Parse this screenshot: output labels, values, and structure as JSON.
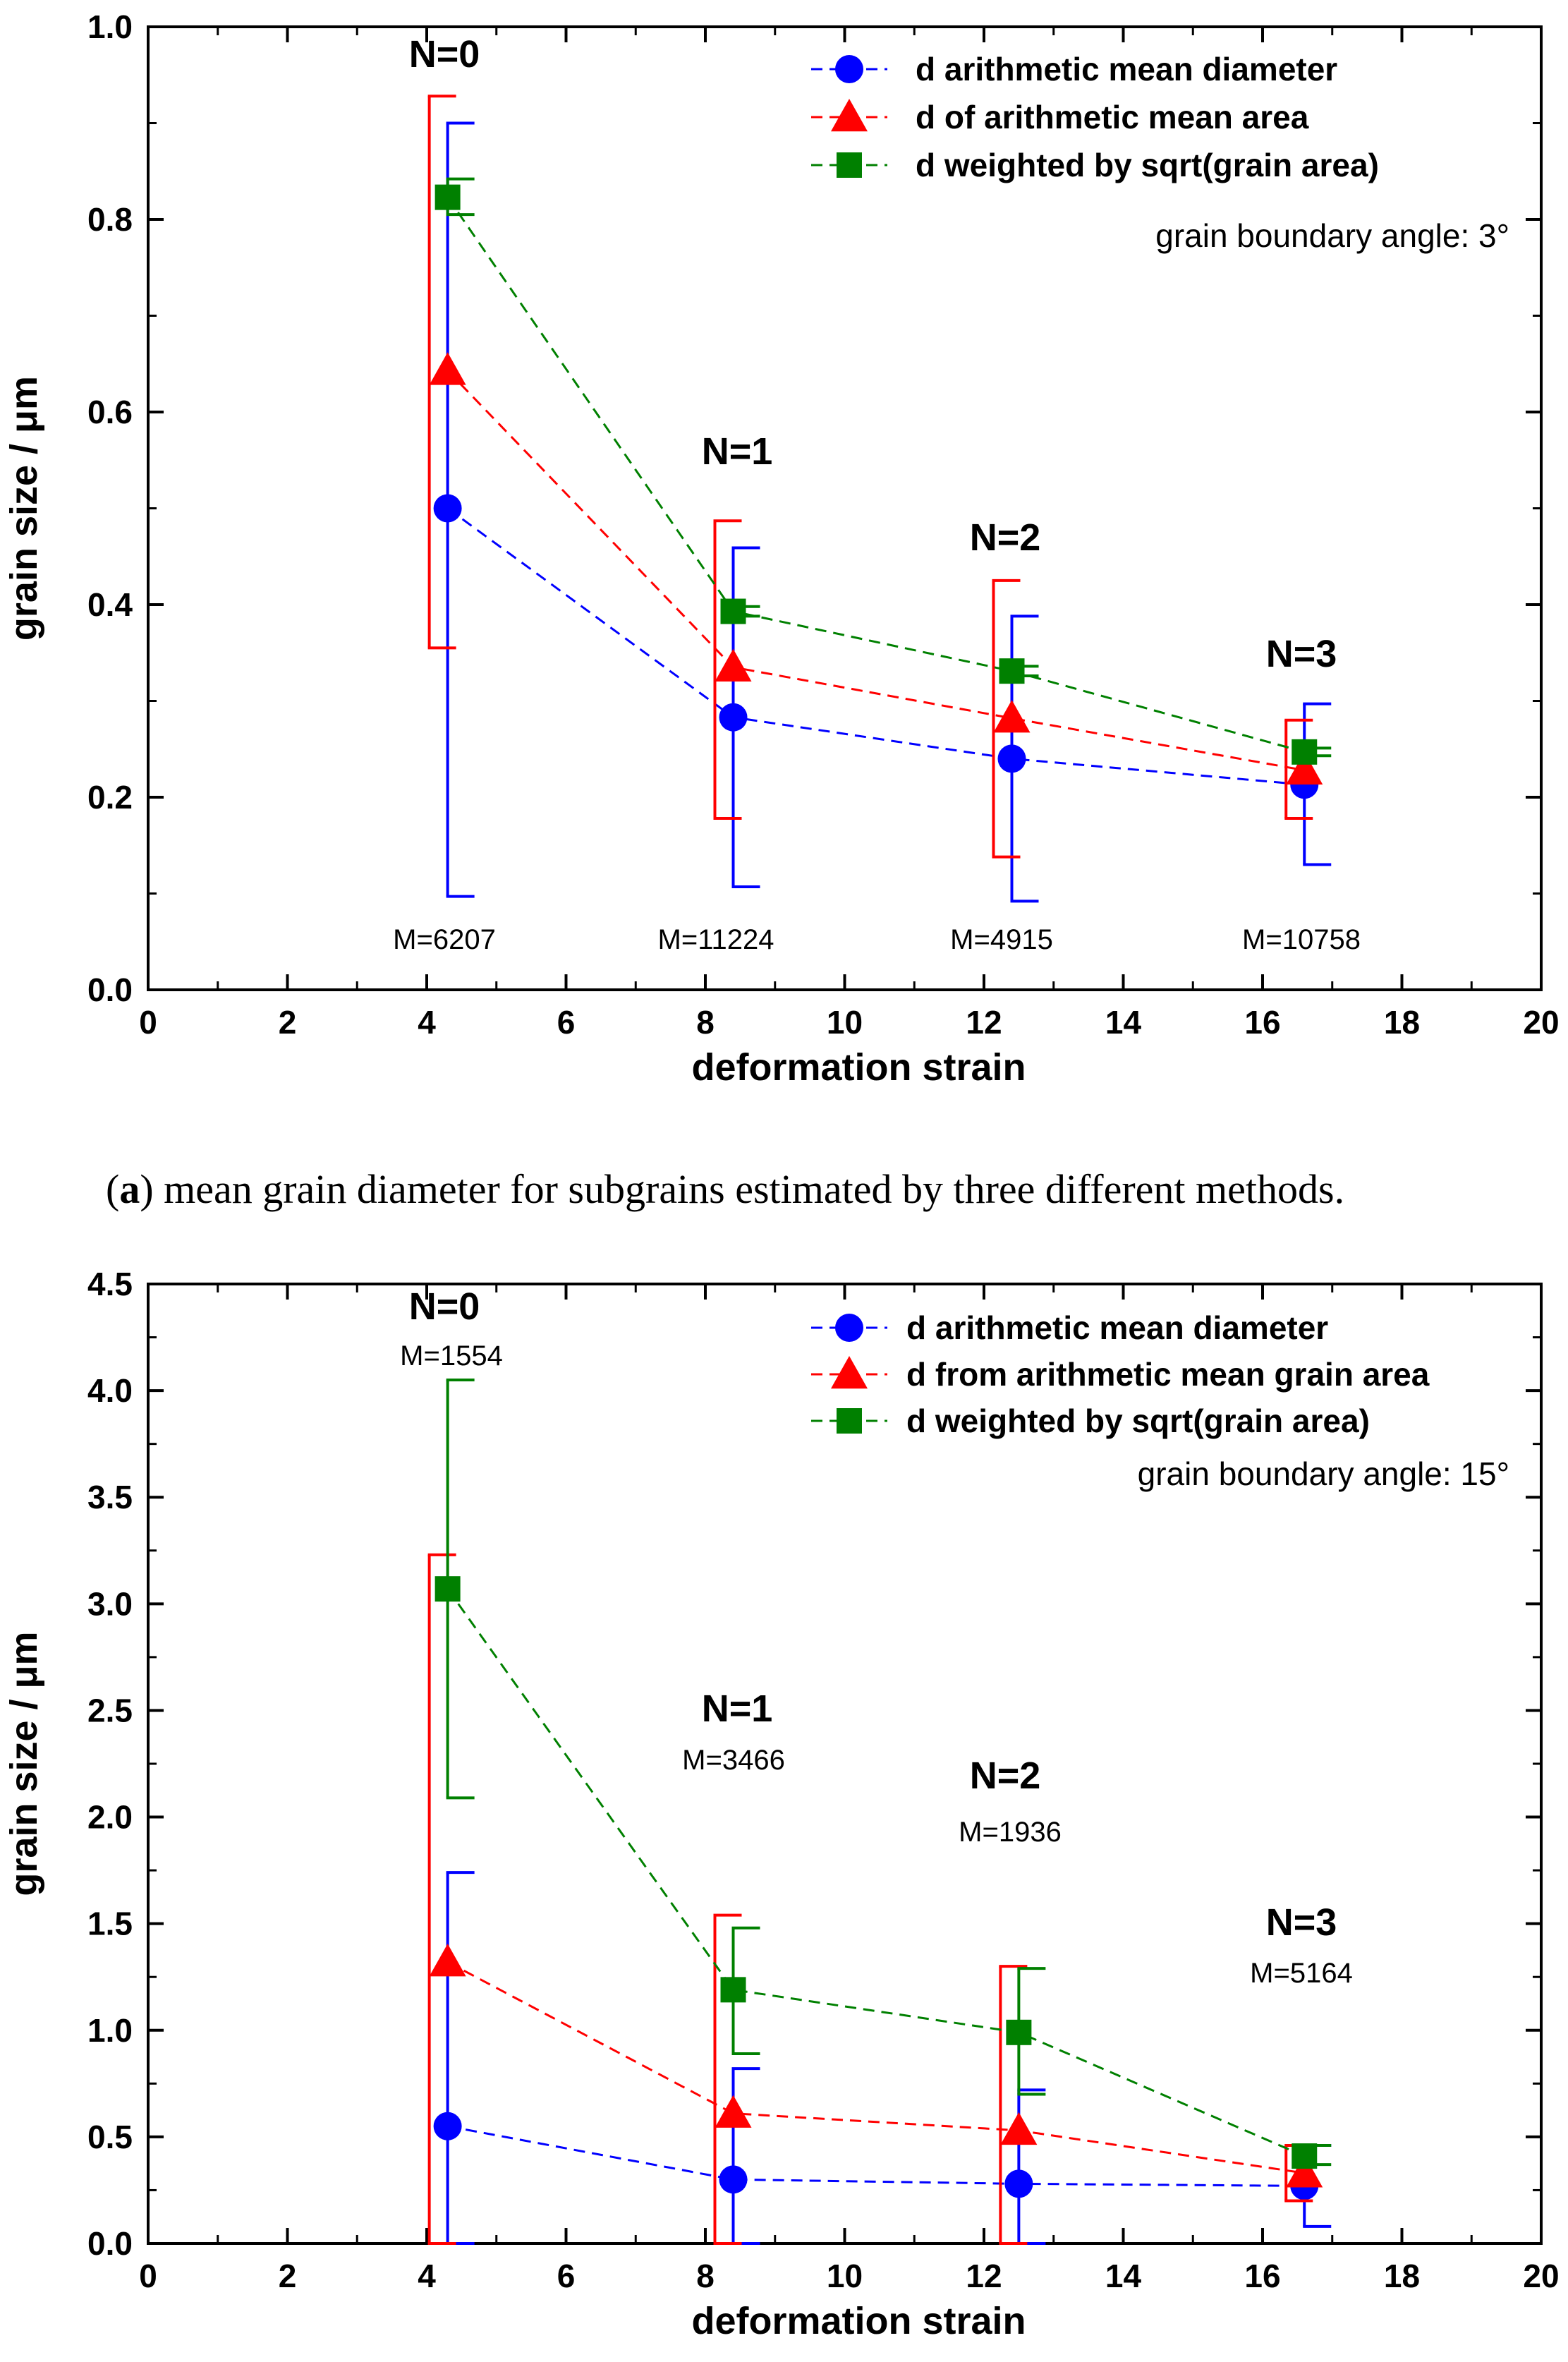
{
  "chart_data": [
    {
      "type": "line",
      "caption_tag": "a",
      "caption": "mean grain diameter for subgrains estimated by three different methods.",
      "xlabel": "deformation strain",
      "ylabel": "grain size / μm",
      "xlim": [
        0,
        20
      ],
      "ylim": [
        0,
        1.0
      ],
      "xticks": [
        "0",
        "2",
        "4",
        "6",
        "8",
        "10",
        "12",
        "14",
        "16",
        "18",
        "20"
      ],
      "yticks": [
        "0.0",
        "0.2",
        "0.4",
        "0.6",
        "0.8",
        "1.0"
      ],
      "annotation": "grain boundary angle: 3°",
      "groups": [
        {
          "label": "N=0",
          "m": "M=6207"
        },
        {
          "label": "N=1",
          "m": "M=11224"
        },
        {
          "label": "N=2",
          "m": "M=4915"
        },
        {
          "label": "N=3",
          "m": "M=10758"
        }
      ],
      "series": [
        {
          "name": "d arithmetic mean diameter",
          "color": "#0000ff",
          "marker": "circle",
          "points": [
            {
              "x": 4.3,
              "y": 0.5,
              "err_lo": 0.097,
              "err_hi": 0.9
            },
            {
              "x": 8.4,
              "y": 0.283,
              "err_lo": 0.107,
              "err_hi": 0.459
            },
            {
              "x": 12.4,
              "y": 0.24,
              "err_lo": 0.092,
              "err_hi": 0.388
            },
            {
              "x": 16.6,
              "y": 0.213,
              "err_lo": 0.13,
              "err_hi": 0.297
            }
          ]
        },
        {
          "name": "d of arithmetic mean area",
          "color": "#ff0000",
          "marker": "triangle",
          "points": [
            {
              "x": 4.3,
              "y": 0.643,
              "err_lo": 0.355,
              "err_hi": 0.928
            },
            {
              "x": 8.4,
              "y": 0.335,
              "err_lo": 0.178,
              "err_hi": 0.487
            },
            {
              "x": 12.4,
              "y": 0.282,
              "err_lo": 0.138,
              "err_hi": 0.425
            },
            {
              "x": 16.6,
              "y": 0.228,
              "err_lo": 0.178,
              "err_hi": 0.28
            }
          ]
        },
        {
          "name": "d weighted by sqrt(grain area)",
          "color": "#008000",
          "marker": "square",
          "points": [
            {
              "x": 4.3,
              "y": 0.823,
              "err_lo": 0.805,
              "err_hi": 0.842
            },
            {
              "x": 8.4,
              "y": 0.393,
              "err_lo": 0.388,
              "err_hi": 0.398
            },
            {
              "x": 12.4,
              "y": 0.331,
              "err_lo": 0.326,
              "err_hi": 0.336
            },
            {
              "x": 16.6,
              "y": 0.247,
              "err_lo": 0.243,
              "err_hi": 0.251
            }
          ]
        }
      ]
    },
    {
      "type": "line",
      "caption_tag": "",
      "caption": "",
      "xlabel": "deformation strain",
      "ylabel": "grain size / μm",
      "xlim": [
        0,
        20
      ],
      "ylim": [
        0,
        4.5
      ],
      "xticks": [
        "0",
        "2",
        "4",
        "6",
        "8",
        "10",
        "12",
        "14",
        "16",
        "18",
        "20"
      ],
      "yticks": [
        "0.0",
        "0.5",
        "1.0",
        "1.5",
        "2.0",
        "2.5",
        "3.0",
        "3.5",
        "4.0",
        "4.5"
      ],
      "annotation": "grain boundary angle: 15°",
      "groups": [
        {
          "label": "N=0",
          "m": "M=1554"
        },
        {
          "label": "N=1",
          "m": "M=3466"
        },
        {
          "label": "N=2",
          "m": "M=1936"
        },
        {
          "label": "N=3",
          "m": "M=5164"
        }
      ],
      "series": [
        {
          "name": "d arithmetic mean diameter",
          "color": "#0000ff",
          "marker": "circle",
          "points": [
            {
              "x": 4.3,
              "y": 0.55,
              "err_lo": 0.0,
              "err_hi": 1.74
            },
            {
              "x": 8.4,
              "y": 0.3,
              "err_lo": 0.0,
              "err_hi": 0.82
            },
            {
              "x": 12.5,
              "y": 0.28,
              "err_lo": 0.0,
              "err_hi": 0.72
            },
            {
              "x": 16.6,
              "y": 0.27,
              "err_lo": 0.08,
              "err_hi": 0.46
            }
          ]
        },
        {
          "name": "d from arithmetic mean grain area",
          "color": "#ff0000",
          "marker": "triangle",
          "points": [
            {
              "x": 4.3,
              "y": 1.32,
              "err_lo": 0.0,
              "err_hi": 3.23
            },
            {
              "x": 8.4,
              "y": 0.61,
              "err_lo": 0.0,
              "err_hi": 1.54
            },
            {
              "x": 12.5,
              "y": 0.53,
              "err_lo": 0.0,
              "err_hi": 1.3
            },
            {
              "x": 16.6,
              "y": 0.33,
              "err_lo": 0.2,
              "err_hi": 0.46
            }
          ]
        },
        {
          "name": "d weighted by sqrt(grain area)",
          "color": "#008000",
          "marker": "square",
          "points": [
            {
              "x": 4.3,
              "y": 3.07,
              "err_lo": 2.09,
              "err_hi": 4.05
            },
            {
              "x": 8.4,
              "y": 1.19,
              "err_lo": 0.89,
              "err_hi": 1.48
            },
            {
              "x": 12.5,
              "y": 0.99,
              "err_lo": 0.7,
              "err_hi": 1.29
            },
            {
              "x": 16.6,
              "y": 0.41,
              "err_lo": 0.37,
              "err_hi": 0.46
            }
          ]
        }
      ]
    }
  ]
}
